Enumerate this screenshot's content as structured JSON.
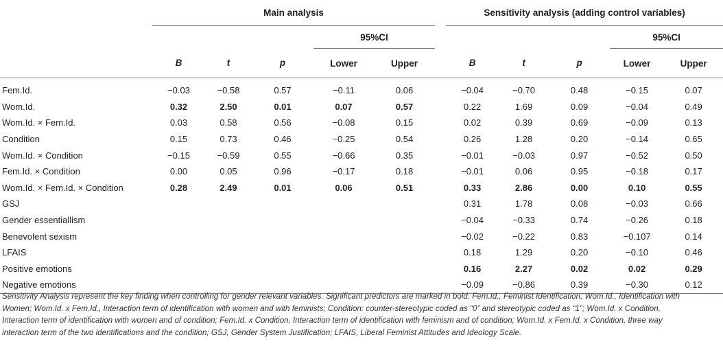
{
  "header": {
    "main_title": "Main analysis",
    "sensitivity_title": "Sensitivity analysis (adding control variables)",
    "ci_label": "95%CI",
    "columns": [
      "B",
      "t",
      "p",
      "Lower",
      "Upper"
    ]
  },
  "rows": [
    {
      "label": "Fem.Id.",
      "main": [
        "−0.03",
        "−0.58",
        "0.57",
        "−0.11",
        "0.06"
      ],
      "sens": [
        "−0.04",
        "−0.70",
        "0.48",
        "−0.15",
        "0.07"
      ],
      "main_bold": false,
      "sens_bold": false
    },
    {
      "label": "Wom.Id.",
      "main": [
        "0.32",
        "2.50",
        "0.01",
        "0.07",
        "0.57"
      ],
      "sens": [
        "0.22",
        "1.69",
        "0.09",
        "−0.04",
        "0.49"
      ],
      "main_bold": true,
      "sens_bold": false
    },
    {
      "label": "Wom.Id. × Fem.Id.",
      "main": [
        "0.03",
        "0.58",
        "0.56",
        "−0.08",
        "0.15"
      ],
      "sens": [
        "0.02",
        "0.39",
        "0.69",
        "−0.09",
        "0.13"
      ],
      "main_bold": false,
      "sens_bold": false
    },
    {
      "label": "Condition",
      "main": [
        "0.15",
        "0.73",
        "0.46",
        "−0.25",
        "0.54"
      ],
      "sens": [
        "0.26",
        "1.28",
        "0.20",
        "−0.14",
        "0.65"
      ],
      "main_bold": false,
      "sens_bold": false
    },
    {
      "label": "Wom.Id. × Condition",
      "main": [
        "−0.15",
        "−0.59",
        "0.55",
        "−0.66",
        "0.35"
      ],
      "sens": [
        "−0.01",
        "−0.03",
        "0.97",
        "−0.52",
        "0.50"
      ],
      "main_bold": false,
      "sens_bold": false
    },
    {
      "label": "Fem.Id. × Condition",
      "main": [
        "0.00",
        "0.05",
        "0.96",
        "−0.17",
        "0.18"
      ],
      "sens": [
        "−0.01",
        "0.06",
        "0.95",
        "−0.18",
        "0.17"
      ],
      "main_bold": false,
      "sens_bold": false
    },
    {
      "label": "Wom.Id. × Fem.Id. × Condition",
      "main": [
        "0.28",
        "2.49",
        "0.01",
        "0.06",
        "0.51"
      ],
      "sens": [
        "0.33",
        "2.86",
        "0.00",
        "0.10",
        "0.55"
      ],
      "main_bold": true,
      "sens_bold": true
    },
    {
      "label": "GSJ",
      "main": [
        "",
        "",
        "",
        "",
        ""
      ],
      "sens": [
        "0.31",
        "1.78",
        "0.08",
        "−0.03",
        "0.66"
      ],
      "main_bold": false,
      "sens_bold": false
    },
    {
      "label": "Gender essentiallism",
      "main": [
        "",
        "",
        "",
        "",
        ""
      ],
      "sens": [
        "−0.04",
        "−0.33",
        "0.74",
        "−0.26",
        "0.18"
      ],
      "main_bold": false,
      "sens_bold": false
    },
    {
      "label": "Benevolent sexism",
      "main": [
        "",
        "",
        "",
        "",
        ""
      ],
      "sens": [
        "−0.02",
        "−0.22",
        "0.83",
        "−0.107",
        "0.14"
      ],
      "main_bold": false,
      "sens_bold": false
    },
    {
      "label": "LFAIS",
      "main": [
        "",
        "",
        "",
        "",
        ""
      ],
      "sens": [
        "0.18",
        "1.29",
        "0.20",
        "−0.10",
        "0.46"
      ],
      "main_bold": false,
      "sens_bold": false
    },
    {
      "label": "Positive emotions",
      "main": [
        "",
        "",
        "",
        "",
        ""
      ],
      "sens": [
        "0.16",
        "2.27",
        "0.02",
        "0.02",
        "0.29"
      ],
      "main_bold": false,
      "sens_bold": true
    },
    {
      "label": "Negative emotions",
      "main": [
        "",
        "",
        "",
        "",
        ""
      ],
      "sens": [
        "−0.09",
        "−0.86",
        "0.39",
        "−0.30",
        "0.12"
      ],
      "main_bold": false,
      "sens_bold": false
    }
  ],
  "footnote": "Sensitivity Analysis represent the key finding when controlling for gender relevant variables. Significant predictors are marked in bold. Fem.Id., Feminist Identification; Wom.Id., Identification with Women; Wom.Id. x Fem.Id., Interaction term of identification with women and with feminists; Condition: counter-stereotypic coded as “0” and stereotypic coded as “1”; Wom.Id. x Condition, Interaction term of identification with women and of condition; Fem.Id. x Condition, Interaction term of identification with feminism and of condition; Wom.Id. x Fem.Id. x Condition, three way interaction term of the two identifications and the condition; GSJ, Gender System Justification; LFAIS, Liberal Feminist Attitudes and Ideology Scale."
}
